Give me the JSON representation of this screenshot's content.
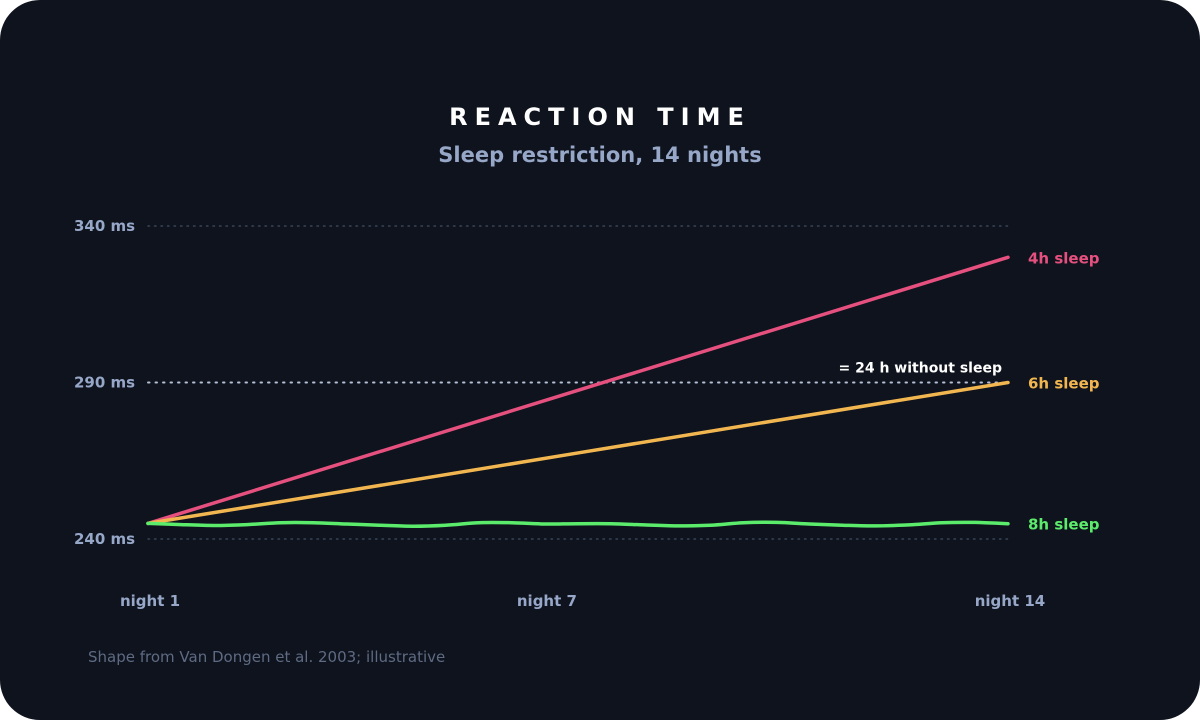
{
  "chart_data": {
    "type": "line",
    "title": "REACTION TIME",
    "subtitle": "Sleep restriction, 14 nights",
    "source": "Shape from Van Dongen et al. 2003; illustrative",
    "ylim": [
      240,
      340
    ],
    "y_ticks": [
      {
        "value": 240,
        "label": "240 ms"
      },
      {
        "value": 290,
        "label": "290 ms"
      },
      {
        "value": 340,
        "label": "340 ms"
      }
    ],
    "x_range": [
      1,
      14
    ],
    "x_ticks": [
      {
        "value": 1,
        "label": "night 1"
      },
      {
        "value": 7,
        "label": "night 7"
      },
      {
        "value": 14,
        "label": "night 14"
      }
    ],
    "reference_line": {
      "value": 290,
      "label": "= 24 h without sleep"
    },
    "series": [
      {
        "name": "4h sleep",
        "color": "#e6507e",
        "x": [
          1,
          14
        ],
        "values": [
          245,
          330
        ]
      },
      {
        "name": "6h sleep",
        "color": "#f2b650",
        "x": [
          1,
          14
        ],
        "values": [
          245,
          290
        ]
      },
      {
        "name": "8h sleep",
        "color": "#5cec6c",
        "x": [
          1,
          1.5,
          2,
          2.5,
          3,
          3.5,
          4,
          4.5,
          5,
          5.5,
          6,
          6.5,
          7,
          7.5,
          8,
          8.5,
          9,
          9.5,
          10,
          10.5,
          11,
          11.5,
          12,
          12.5,
          13,
          13.5,
          14
        ],
        "values": [
          245,
          244.6,
          244.3,
          244.6,
          245.2,
          245.2,
          244.8,
          244.4,
          244.1,
          244.4,
          245.2,
          245.2,
          244.8,
          244.9,
          244.9,
          244.5,
          244.2,
          244.4,
          245.2,
          245.3,
          244.8,
          244.4,
          244.2,
          244.5,
          245.2,
          245.3,
          244.9
        ]
      }
    ],
    "grid": "dotted horizontal at tick values"
  }
}
